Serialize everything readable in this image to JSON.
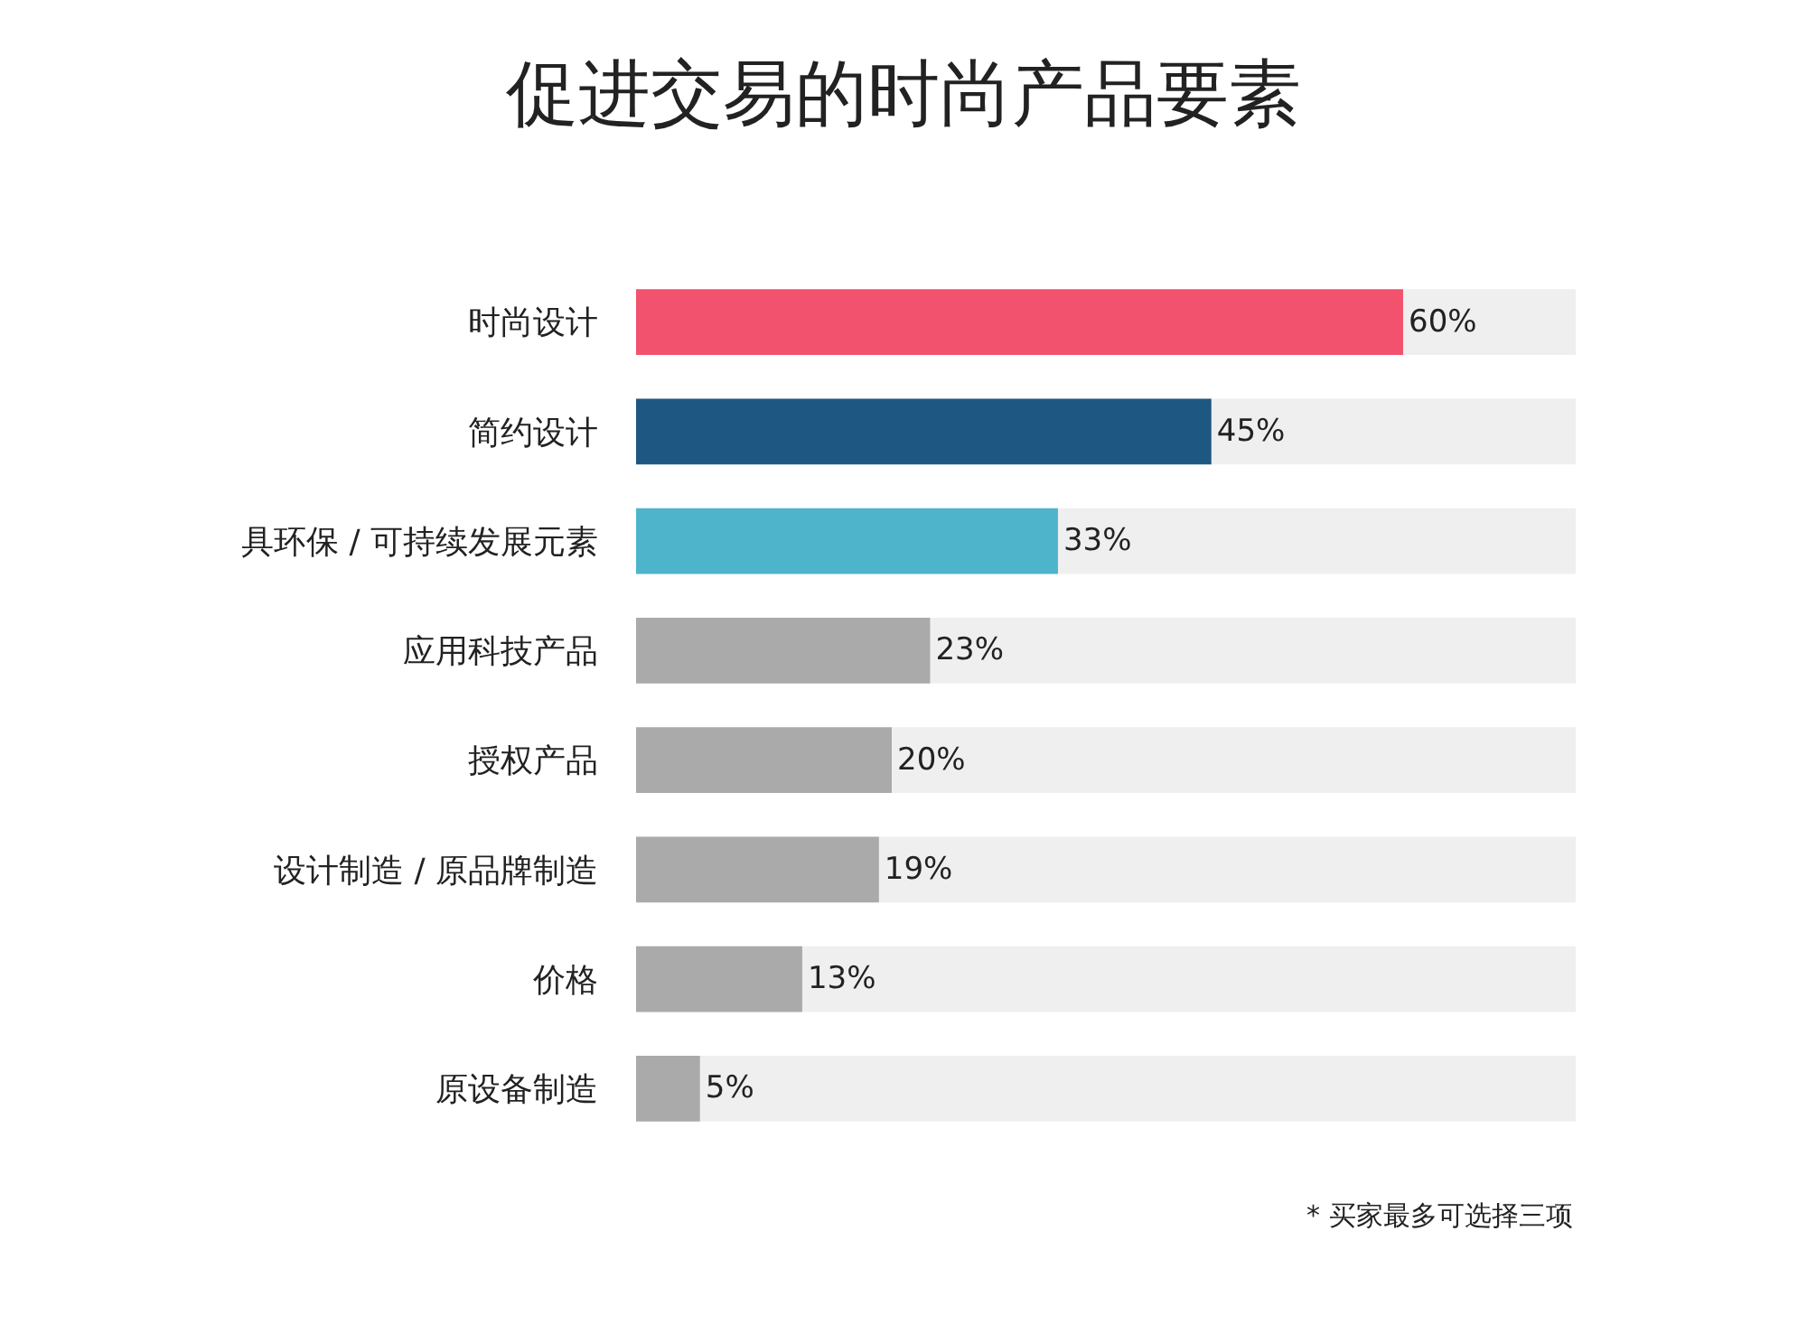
{
  "chart_data": {
    "type": "bar",
    "orientation": "horizontal",
    "title": "促进交易的时尚产品要素",
    "categories": [
      "时尚设计",
      "简约设计",
      "具环保 / 可持续发展元素",
      "应用科技产品",
      "授权产品",
      "设计制造 / 原品牌制造",
      "价格",
      "原设备制造"
    ],
    "values": [
      60,
      45,
      33,
      23,
      20,
      19,
      13,
      5
    ],
    "colors": [
      "#f2526e",
      "#1f5783",
      "#4db4cc",
      "#aaaaaa",
      "#aaaaaa",
      "#aaaaaa",
      "#aaaaaa",
      "#aaaaaa"
    ],
    "value_labels": [
      "60%",
      "45%",
      "33%",
      "23%",
      "20%",
      "19%",
      "13%",
      "5%"
    ],
    "tick_labels": "y",
    "legend": false,
    "annotations": [
      "* 买家最多可选择三项"
    ]
  }
}
